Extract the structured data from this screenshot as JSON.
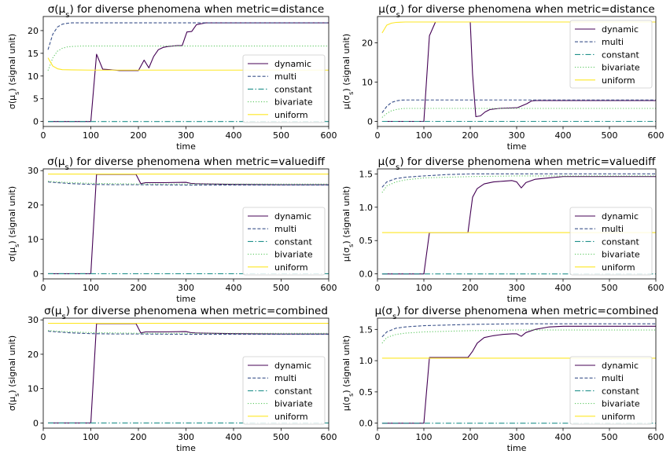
{
  "colors": {
    "dynamic": "#440154",
    "multi": "#3b528b",
    "constant": "#21918c",
    "bivariate": "#5ec962",
    "uniform": "#fde725"
  },
  "chart_data": [
    {
      "type": "line",
      "title_prefix": "σ(μ",
      "title_sub": "s",
      "title_suffix": ") for diverse phenomena when metric=distance",
      "xlabel": "time",
      "ylabel_prefix": "σ(μ",
      "ylabel_sub": "s",
      "ylabel_suffix": ") (signal unit)",
      "xlim": [
        0,
        600
      ],
      "ylim": [
        -1.1,
        23.1
      ],
      "xticks": [
        0,
        100,
        200,
        300,
        400,
        500,
        600
      ],
      "yticks": [
        0,
        5,
        10,
        15,
        20
      ],
      "xtick_labels": [
        "0",
        "100",
        "200",
        "300",
        "400",
        "500",
        "600"
      ],
      "ytick_labels": [
        "0",
        "5",
        "10",
        "15",
        "20"
      ],
      "legend_loc": "lower-right",
      "series": [
        {
          "name": "dynamic",
          "style": "solid",
          "x": [
            10,
            20,
            40,
            60,
            80,
            100,
            112,
            125,
            140,
            150,
            160,
            180,
            200,
            212,
            222,
            232,
            242,
            252,
            262,
            272,
            282,
            292,
            302,
            312,
            322,
            332,
            342,
            352,
            400,
            500,
            600
          ],
          "y": [
            0,
            0,
            0,
            0,
            0,
            0,
            14.8,
            11.5,
            11.4,
            11.3,
            11.2,
            11.2,
            11.2,
            13.5,
            11.8,
            14.3,
            15.8,
            16.3,
            16.5,
            16.6,
            16.7,
            16.7,
            19.7,
            19.8,
            21.3,
            21.5,
            21.7,
            21.7,
            21.7,
            21.7,
            21.7
          ]
        },
        {
          "name": "multi",
          "style": "dashed",
          "x": [
            10,
            20,
            30,
            40,
            50,
            60,
            80,
            100,
            200,
            300,
            400,
            500,
            600
          ],
          "y": [
            15.8,
            19.2,
            20.8,
            21.4,
            21.6,
            21.7,
            21.7,
            21.7,
            21.7,
            21.7,
            21.7,
            21.7,
            21.7
          ]
        },
        {
          "name": "constant",
          "style": "dashdot",
          "x": [
            10,
            600
          ],
          "y": [
            0,
            0
          ]
        },
        {
          "name": "bivariate",
          "style": "dotted",
          "x": [
            10,
            20,
            30,
            40,
            50,
            60,
            80,
            100,
            200,
            300,
            400,
            500,
            600
          ],
          "y": [
            11.2,
            14.0,
            15.5,
            16.1,
            16.4,
            16.5,
            16.6,
            16.6,
            16.6,
            16.6,
            16.6,
            16.6,
            16.6
          ]
        },
        {
          "name": "uniform",
          "style": "solid",
          "x": [
            10,
            20,
            30,
            40,
            60,
            100,
            200,
            300,
            400,
            500,
            600
          ],
          "y": [
            14.0,
            12.2,
            11.6,
            11.4,
            11.35,
            11.3,
            11.3,
            11.3,
            11.3,
            11.3,
            11.3
          ]
        }
      ]
    },
    {
      "type": "line",
      "title_prefix": "μ(σ",
      "title_sub": "s",
      "title_suffix": ") for diverse phenomena when metric=distance",
      "xlabel": "time",
      "ylabel_prefix": "μ(σ",
      "ylabel_sub": "s",
      "ylabel_suffix": ") (signal unit)",
      "xlim": [
        0,
        600
      ],
      "ylim": [
        -1.3,
        26.7
      ],
      "xticks": [
        0,
        100,
        200,
        300,
        400,
        500,
        600
      ],
      "yticks": [
        0,
        10,
        20
      ],
      "xtick_labels": [
        "0",
        "100",
        "200",
        "300",
        "400",
        "500",
        "600"
      ],
      "ytick_labels": [
        "0",
        "10",
        "20"
      ],
      "legend_loc": "upper-right",
      "series": [
        {
          "name": "dynamic",
          "style": "solid",
          "x": [
            10,
            20,
            40,
            60,
            80,
            100,
            112,
            125,
            150,
            180,
            200,
            205,
            212,
            222,
            232,
            242,
            262,
            282,
            302,
            312,
            322,
            332,
            342,
            400,
            500,
            600
          ],
          "y": [
            0,
            0,
            0,
            0,
            0,
            0,
            21.8,
            25.3,
            25.3,
            25.3,
            25.3,
            12.0,
            1.2,
            1.4,
            2.4,
            3.0,
            3.3,
            3.4,
            3.5,
            4.0,
            4.5,
            5.2,
            5.3,
            5.3,
            5.3,
            5.3
          ]
        },
        {
          "name": "multi",
          "style": "dashed",
          "x": [
            10,
            20,
            30,
            40,
            50,
            60,
            100,
            200,
            300,
            400,
            500,
            600
          ],
          "y": [
            2.2,
            3.8,
            4.8,
            5.2,
            5.4,
            5.45,
            5.45,
            5.45,
            5.45,
            5.45,
            5.45,
            5.45
          ]
        },
        {
          "name": "constant",
          "style": "dashdot",
          "x": [
            10,
            600
          ],
          "y": [
            0,
            0
          ]
        },
        {
          "name": "bivariate",
          "style": "dotted",
          "x": [
            10,
            20,
            30,
            40,
            50,
            60,
            100,
            200,
            300,
            400,
            500,
            600
          ],
          "y": [
            1.0,
            2.0,
            2.7,
            3.0,
            3.2,
            3.3,
            3.3,
            3.3,
            3.3,
            3.3,
            3.3,
            3.3
          ]
        },
        {
          "name": "uniform",
          "style": "solid",
          "x": [
            10,
            20,
            30,
            40,
            60,
            100,
            200,
            300,
            400,
            500,
            600
          ],
          "y": [
            22.5,
            24.5,
            25.0,
            25.2,
            25.3,
            25.3,
            25.3,
            25.3,
            25.3,
            25.3,
            25.3
          ]
        }
      ]
    },
    {
      "type": "line",
      "title_prefix": "σ(μ",
      "title_sub": "s",
      "title_suffix": ") for diverse phenomena when metric=valuediff",
      "xlabel": "time",
      "ylabel_prefix": "σ(μ",
      "ylabel_sub": "s",
      "ylabel_suffix": ") (signal unit)",
      "xlim": [
        0,
        600
      ],
      "ylim": [
        -1.5,
        30.5
      ],
      "xticks": [
        0,
        100,
        200,
        300,
        400,
        500,
        600
      ],
      "yticks": [
        0,
        10,
        20,
        30
      ],
      "xtick_labels": [
        "0",
        "100",
        "200",
        "300",
        "400",
        "500",
        "600"
      ],
      "ytick_labels": [
        "0",
        "10",
        "20",
        "30"
      ],
      "legend_loc": "lower-right",
      "series": [
        {
          "name": "dynamic",
          "style": "solid",
          "x": [
            10,
            40,
            80,
            100,
            112,
            150,
            195,
            205,
            215,
            250,
            300,
            310,
            320,
            400,
            500,
            600
          ],
          "y": [
            0,
            0,
            0,
            0,
            28.9,
            28.9,
            28.9,
            26.2,
            26.5,
            26.5,
            26.6,
            26.3,
            26.2,
            26.0,
            25.9,
            25.9
          ]
        },
        {
          "name": "multi",
          "style": "dashed",
          "x": [
            10,
            30,
            60,
            100,
            150,
            200,
            300,
            400,
            500,
            600
          ],
          "y": [
            26.7,
            26.5,
            26.2,
            26.0,
            25.9,
            25.9,
            25.8,
            25.8,
            25.8,
            25.8
          ]
        },
        {
          "name": "constant",
          "style": "dashdot",
          "x": [
            10,
            600
          ],
          "y": [
            0,
            0
          ]
        },
        {
          "name": "bivariate",
          "style": "dotted",
          "x": [
            10,
            30,
            60,
            100,
            150,
            200,
            300,
            400,
            500,
            600
          ],
          "y": [
            26.9,
            26.7,
            26.5,
            26.3,
            26.2,
            26.1,
            26.1,
            26.1,
            26.1,
            26.1
          ]
        },
        {
          "name": "uniform",
          "style": "solid",
          "x": [
            10,
            600
          ],
          "y": [
            29.0,
            29.0
          ]
        }
      ]
    },
    {
      "type": "line",
      "title_prefix": "μ(σ",
      "title_sub": "s",
      "title_suffix": ") for diverse phenomena when metric=valuediff",
      "xlabel": "time",
      "ylabel_prefix": "μ(σ",
      "ylabel_sub": "s",
      "ylabel_suffix": ") (signal unit)",
      "xlim": [
        0,
        600
      ],
      "ylim": [
        -0.075,
        1.575
      ],
      "xticks": [
        0,
        100,
        200,
        300,
        400,
        500,
        600
      ],
      "yticks": [
        0.0,
        0.5,
        1.0,
        1.5
      ],
      "xtick_labels": [
        "0",
        "100",
        "200",
        "300",
        "400",
        "500",
        "600"
      ],
      "ytick_labels": [
        "0.0",
        "0.5",
        "1.0",
        "1.5"
      ],
      "legend_loc": "lower-right",
      "series": [
        {
          "name": "dynamic",
          "style": "solid",
          "x": [
            10,
            40,
            80,
            100,
            112,
            150,
            195,
            205,
            215,
            230,
            250,
            270,
            290,
            300,
            310,
            320,
            340,
            370,
            400,
            500,
            600
          ],
          "y": [
            0,
            0,
            0,
            0,
            0.62,
            0.62,
            0.62,
            1.15,
            1.28,
            1.35,
            1.38,
            1.39,
            1.4,
            1.38,
            1.29,
            1.37,
            1.42,
            1.44,
            1.46,
            1.46,
            1.46
          ]
        },
        {
          "name": "multi",
          "style": "dashed",
          "x": [
            10,
            20,
            40,
            60,
            100,
            150,
            200,
            300,
            400,
            500,
            600
          ],
          "y": [
            1.3,
            1.38,
            1.43,
            1.45,
            1.47,
            1.49,
            1.5,
            1.5,
            1.5,
            1.5,
            1.5
          ]
        },
        {
          "name": "constant",
          "style": "dashdot",
          "x": [
            10,
            600
          ],
          "y": [
            0,
            0
          ]
        },
        {
          "name": "bivariate",
          "style": "dotted",
          "x": [
            10,
            20,
            40,
            60,
            100,
            150,
            200,
            300,
            400,
            500,
            600
          ],
          "y": [
            1.22,
            1.32,
            1.38,
            1.41,
            1.44,
            1.45,
            1.46,
            1.47,
            1.47,
            1.47,
            1.47
          ]
        },
        {
          "name": "uniform",
          "style": "solid",
          "x": [
            10,
            600
          ],
          "y": [
            0.62,
            0.62
          ]
        }
      ]
    },
    {
      "type": "line",
      "title_prefix": "σ(μ",
      "title_sub": "s",
      "title_suffix": ") for diverse phenomena when metric=combined",
      "xlabel": "time",
      "ylabel_prefix": "σ(μ",
      "ylabel_sub": "s",
      "ylabel_suffix": ") (signal unit)",
      "xlim": [
        0,
        600
      ],
      "ylim": [
        -1.5,
        30.5
      ],
      "xticks": [
        0,
        100,
        200,
        300,
        400,
        500,
        600
      ],
      "yticks": [
        0,
        10,
        20,
        30
      ],
      "xtick_labels": [
        "0",
        "100",
        "200",
        "300",
        "400",
        "500",
        "600"
      ],
      "ytick_labels": [
        "0",
        "10",
        "20",
        "30"
      ],
      "legend_loc": "lower-right",
      "series": [
        {
          "name": "dynamic",
          "style": "solid",
          "x": [
            10,
            40,
            80,
            100,
            112,
            150,
            195,
            205,
            215,
            250,
            300,
            310,
            320,
            400,
            500,
            600
          ],
          "y": [
            0,
            0,
            0,
            0,
            28.9,
            28.9,
            28.9,
            26.2,
            26.5,
            26.5,
            26.6,
            26.3,
            26.2,
            26.0,
            25.9,
            25.9
          ]
        },
        {
          "name": "multi",
          "style": "dashed",
          "x": [
            10,
            30,
            60,
            100,
            150,
            200,
            300,
            400,
            500,
            600
          ],
          "y": [
            26.7,
            26.5,
            26.2,
            26.0,
            25.9,
            25.9,
            25.8,
            25.8,
            25.8,
            25.8
          ]
        },
        {
          "name": "constant",
          "style": "dashdot",
          "x": [
            10,
            600
          ],
          "y": [
            0,
            0
          ]
        },
        {
          "name": "bivariate",
          "style": "dotted",
          "x": [
            10,
            30,
            60,
            100,
            150,
            200,
            300,
            400,
            500,
            600
          ],
          "y": [
            26.9,
            26.7,
            26.5,
            26.3,
            26.2,
            26.1,
            26.1,
            26.1,
            26.1,
            26.1
          ]
        },
        {
          "name": "uniform",
          "style": "solid",
          "x": [
            10,
            600
          ],
          "y": [
            29.0,
            29.0
          ]
        }
      ]
    },
    {
      "type": "line",
      "title_prefix": "μ(σ",
      "title_sub": "s",
      "title_suffix": ") for diverse phenomena when metric=combined",
      "xlabel": "time",
      "ylabel_prefix": "μ(σ",
      "ylabel_sub": "s",
      "ylabel_suffix": ") (signal unit)",
      "xlim": [
        0,
        600
      ],
      "ylim": [
        -0.08,
        1.68
      ],
      "xticks": [
        0,
        100,
        200,
        300,
        400,
        500,
        600
      ],
      "yticks": [
        0.0,
        0.5,
        1.0,
        1.5
      ],
      "xtick_labels": [
        "0",
        "100",
        "200",
        "300",
        "400",
        "500",
        "600"
      ],
      "ytick_labels": [
        "0.0",
        "0.5",
        "1.0",
        "1.5"
      ],
      "legend_loc": "lower-right",
      "series": [
        {
          "name": "dynamic",
          "style": "solid",
          "x": [
            10,
            40,
            80,
            100,
            112,
            150,
            195,
            205,
            215,
            230,
            250,
            270,
            290,
            300,
            310,
            320,
            340,
            370,
            400,
            500,
            600
          ],
          "y": [
            0,
            0,
            0,
            0,
            1.05,
            1.05,
            1.05,
            1.15,
            1.28,
            1.37,
            1.4,
            1.42,
            1.43,
            1.43,
            1.39,
            1.45,
            1.5,
            1.54,
            1.55,
            1.55,
            1.55
          ]
        },
        {
          "name": "multi",
          "style": "dashed",
          "x": [
            10,
            20,
            40,
            60,
            100,
            150,
            200,
            300,
            400,
            500,
            600
          ],
          "y": [
            1.38,
            1.46,
            1.52,
            1.54,
            1.56,
            1.57,
            1.58,
            1.59,
            1.59,
            1.59,
            1.59
          ]
        },
        {
          "name": "constant",
          "style": "dashdot",
          "x": [
            10,
            600
          ],
          "y": [
            0,
            0
          ]
        },
        {
          "name": "bivariate",
          "style": "dotted",
          "x": [
            10,
            20,
            40,
            60,
            100,
            150,
            200,
            300,
            400,
            500,
            600
          ],
          "y": [
            1.28,
            1.37,
            1.42,
            1.44,
            1.46,
            1.47,
            1.48,
            1.49,
            1.49,
            1.49,
            1.49
          ]
        },
        {
          "name": "uniform",
          "style": "solid",
          "x": [
            10,
            600
          ],
          "y": [
            1.04,
            1.04
          ]
        }
      ]
    }
  ]
}
